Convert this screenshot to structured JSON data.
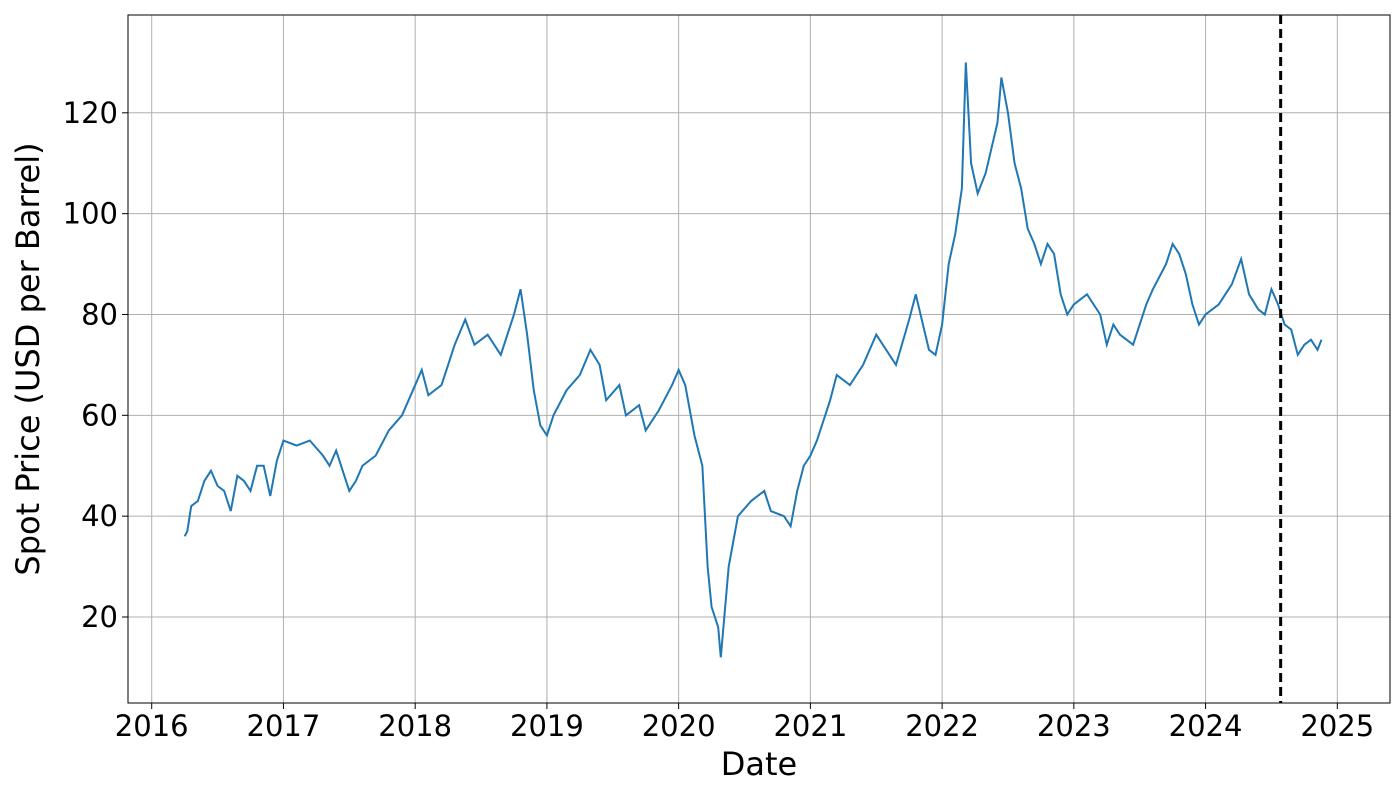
{
  "chart_data": {
    "type": "line",
    "x_label": "Date",
    "y_label": "Spot Price (USD per Barrel)",
    "x": [
      2016.25,
      2016.27,
      2016.3,
      2016.35,
      2016.4,
      2016.45,
      2016.5,
      2016.55,
      2016.6,
      2016.65,
      2016.7,
      2016.75,
      2016.8,
      2016.85,
      2016.9,
      2016.95,
      2017.0,
      2017.1,
      2017.2,
      2017.3,
      2017.35,
      2017.4,
      2017.5,
      2017.55,
      2017.6,
      2017.7,
      2017.8,
      2017.9,
      2018.0,
      2018.05,
      2018.1,
      2018.2,
      2018.3,
      2018.38,
      2018.45,
      2018.55,
      2018.65,
      2018.75,
      2018.8,
      2018.85,
      2018.9,
      2018.95,
      2019.0,
      2019.05,
      2019.15,
      2019.25,
      2019.33,
      2019.4,
      2019.45,
      2019.55,
      2019.6,
      2019.7,
      2019.75,
      2019.85,
      2019.95,
      2020.0,
      2020.05,
      2020.12,
      2020.18,
      2020.22,
      2020.25,
      2020.3,
      2020.32,
      2020.38,
      2020.45,
      2020.55,
      2020.65,
      2020.7,
      2020.8,
      2020.85,
      2020.9,
      2020.95,
      2021.0,
      2021.05,
      2021.15,
      2021.2,
      2021.3,
      2021.4,
      2021.5,
      2021.55,
      2021.65,
      2021.75,
      2021.8,
      2021.9,
      2021.95,
      2022.0,
      2022.05,
      2022.1,
      2022.15,
      2022.18,
      2022.22,
      2022.27,
      2022.33,
      2022.42,
      2022.45,
      2022.5,
      2022.55,
      2022.6,
      2022.65,
      2022.7,
      2022.75,
      2022.8,
      2022.85,
      2022.9,
      2022.95,
      2023.0,
      2023.1,
      2023.2,
      2023.25,
      2023.3,
      2023.35,
      2023.45,
      2023.5,
      2023.55,
      2023.6,
      2023.7,
      2023.75,
      2023.8,
      2023.85,
      2023.9,
      2023.95,
      2024.0,
      2024.1,
      2024.2,
      2024.27,
      2024.33,
      2024.4,
      2024.45,
      2024.5,
      2024.55,
      2024.6,
      2024.65,
      2024.7,
      2024.75,
      2024.8,
      2024.85,
      2024.88
    ],
    "values": [
      36,
      37,
      42,
      43,
      47,
      49,
      46,
      45,
      41,
      48,
      47,
      45,
      50,
      50,
      44,
      51,
      55,
      54,
      55,
      52,
      50,
      53,
      45,
      47,
      50,
      52,
      57,
      60,
      66,
      69,
      64,
      66,
      74,
      79,
      74,
      76,
      72,
      80,
      85,
      76,
      65,
      58,
      56,
      60,
      65,
      68,
      73,
      70,
      63,
      66,
      60,
      62,
      57,
      61,
      66,
      69,
      66,
      56,
      50,
      30,
      22,
      18,
      12,
      30,
      40,
      43,
      45,
      41,
      40,
      38,
      45,
      50,
      52,
      55,
      63,
      68,
      66,
      70,
      76,
      74,
      70,
      79,
      84,
      73,
      72,
      78,
      90,
      96,
      105,
      130,
      110,
      104,
      108,
      118,
      127,
      120,
      110,
      105,
      97,
      94,
      90,
      94,
      92,
      84,
      80,
      82,
      84,
      80,
      74,
      78,
      76,
      74,
      78,
      82,
      85,
      90,
      94,
      92,
      88,
      82,
      78,
      80,
      82,
      86,
      91,
      84,
      81,
      80,
      85,
      82,
      78,
      77,
      72,
      74,
      75,
      73,
      75
    ],
    "color": "#1f77b4",
    "vline_x": 2024.57,
    "vline_color": "#000000",
    "xlim": [
      2015.82,
      2025.4
    ],
    "xticks": [
      2016,
      2017,
      2018,
      2019,
      2020,
      2021,
      2022,
      2023,
      2024,
      2025
    ],
    "ylim": [
      2.94,
      139.4
    ],
    "yticks": [
      20,
      40,
      60,
      80,
      100,
      120
    ],
    "grid": true
  }
}
